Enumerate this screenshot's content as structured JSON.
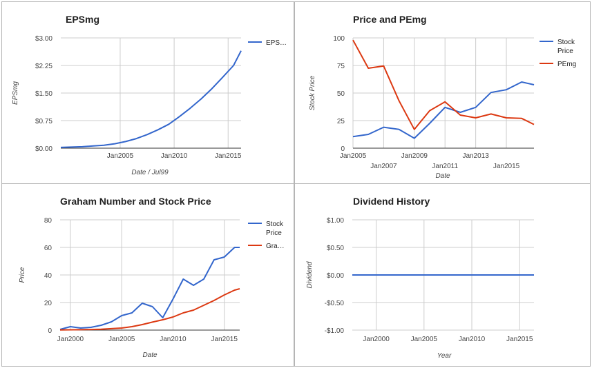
{
  "colors": {
    "blue": "#3366cc",
    "red": "#dc3912",
    "grid": "#cccccc",
    "axis": "#333333"
  },
  "chart_data": [
    {
      "type": "line",
      "title": "EPSmg",
      "xlabel": "Date / Jul99",
      "ylabel": "EPSmg",
      "xlim": [
        1999.5,
        2016.2
      ],
      "ylim": [
        0,
        3
      ],
      "x_ticks": [
        {
          "v": 2005,
          "label": "Jan2005"
        },
        {
          "v": 2010,
          "label": "Jan2010"
        },
        {
          "v": 2015,
          "label": "Jan2015"
        }
      ],
      "y_ticks": [
        {
          "v": 0,
          "label": "$0.00"
        },
        {
          "v": 0.75,
          "label": "$0.75"
        },
        {
          "v": 1.5,
          "label": "$1.50"
        },
        {
          "v": 2.25,
          "label": "$2.25"
        },
        {
          "v": 3,
          "label": "$3.00"
        }
      ],
      "legend": "right",
      "series": [
        {
          "name": "EPS…",
          "color": "#3366cc",
          "x": [
            1999.5,
            2000.5,
            2001.5,
            2002.5,
            2003.5,
            2004.5,
            2005.5,
            2006.5,
            2007.5,
            2008.5,
            2009.5,
            2010.5,
            2011.5,
            2012.5,
            2013.5,
            2014.5,
            2015.5,
            2016.2
          ],
          "y": [
            0.02,
            0.03,
            0.04,
            0.06,
            0.08,
            0.12,
            0.18,
            0.26,
            0.37,
            0.5,
            0.65,
            0.86,
            1.09,
            1.34,
            1.62,
            1.93,
            2.25,
            2.65
          ]
        }
      ]
    },
    {
      "type": "line",
      "title": "Price and PEmg",
      "xlabel": "Date",
      "ylabel": "Stock Price",
      "xlim": [
        2005,
        2016.8
      ],
      "ylim": [
        0,
        100
      ],
      "x_ticks": [
        {
          "v": 2005,
          "label": "Jan2005",
          "row": 0
        },
        {
          "v": 2007,
          "label": "Jan2007",
          "row": 1
        },
        {
          "v": 2009,
          "label": "Jan2009",
          "row": 0
        },
        {
          "v": 2011,
          "label": "Jan2011",
          "row": 1
        },
        {
          "v": 2013,
          "label": "Jan2013",
          "row": 0
        },
        {
          "v": 2015,
          "label": "Jan2015",
          "row": 1
        }
      ],
      "y_ticks": [
        {
          "v": 0,
          "label": "0"
        },
        {
          "v": 25,
          "label": "25"
        },
        {
          "v": 50,
          "label": "50"
        },
        {
          "v": 75,
          "label": "75"
        },
        {
          "v": 100,
          "label": "100"
        }
      ],
      "legend": "right",
      "series": [
        {
          "name": "Stock Price",
          "color": "#3366cc",
          "x": [
            2005,
            2006,
            2007,
            2008,
            2009,
            2010,
            2011,
            2012,
            2013,
            2014,
            2015,
            2016,
            2016.8
          ],
          "y": [
            10.5,
            12.5,
            19,
            17,
            9,
            22.5,
            37,
            32.5,
            37,
            50.5,
            53,
            60,
            57.5
          ]
        },
        {
          "name": "PEmg",
          "color": "#dc3912",
          "x": [
            2005,
            2006,
            2007,
            2008,
            2009,
            2010,
            2011,
            2012,
            2013,
            2014,
            2015,
            2016,
            2016.8
          ],
          "y": [
            98,
            72.5,
            74.5,
            43,
            17,
            34,
            42,
            30,
            27.5,
            31,
            27.5,
            27,
            21.5
          ]
        }
      ]
    },
    {
      "type": "line",
      "title": "Graham Number and Stock Price",
      "xlabel": "Date",
      "ylabel": "Price",
      "xlim": [
        1999,
        2016.5
      ],
      "ylim": [
        0,
        80
      ],
      "x_ticks": [
        {
          "v": 2000,
          "label": "Jan2000"
        },
        {
          "v": 2005,
          "label": "Jan2005"
        },
        {
          "v": 2010,
          "label": "Jan2010"
        },
        {
          "v": 2015,
          "label": "Jan2015"
        }
      ],
      "y_ticks": [
        {
          "v": 0,
          "label": "0"
        },
        {
          "v": 20,
          "label": "20"
        },
        {
          "v": 40,
          "label": "40"
        },
        {
          "v": 60,
          "label": "60"
        },
        {
          "v": 80,
          "label": "80"
        }
      ],
      "legend": "right",
      "series": [
        {
          "name": "Stock Price",
          "color": "#3366cc",
          "x": [
            1999,
            2000,
            2001,
            2002,
            2003,
            2004,
            2005,
            2006,
            2007,
            2008,
            2009,
            2010,
            2011,
            2012,
            2013,
            2014,
            2015,
            2016,
            2016.5
          ],
          "y": [
            0.5,
            2.5,
            1.5,
            2,
            3.5,
            6,
            10.5,
            12.5,
            19.5,
            17,
            9,
            22.5,
            37,
            32.5,
            37,
            51,
            53,
            60,
            60
          ]
        },
        {
          "name": "Gra…",
          "color": "#dc3912",
          "x": [
            1999,
            2001,
            2003,
            2005,
            2006,
            2007,
            2008,
            2009,
            2010,
            2011,
            2012,
            2013,
            2014,
            2015,
            2016,
            2016.5
          ],
          "y": [
            0.1,
            0.3,
            0.6,
            1.5,
            2.5,
            4,
            5.8,
            7.5,
            9.5,
            12.5,
            14.5,
            18,
            21.5,
            25.5,
            29,
            30
          ]
        }
      ]
    },
    {
      "type": "line",
      "title": "Dividend History",
      "xlabel": "Year",
      "ylabel": "Dividend",
      "xlim": [
        1997.5,
        2016.5
      ],
      "ylim": [
        -1,
        1
      ],
      "x_ticks": [
        {
          "v": 2000,
          "label": "Jan2000"
        },
        {
          "v": 2005,
          "label": "Jan2005"
        },
        {
          "v": 2010,
          "label": "Jan2010"
        },
        {
          "v": 2015,
          "label": "Jan2015"
        }
      ],
      "y_ticks": [
        {
          "v": -1,
          "label": "-$1.00"
        },
        {
          "v": -0.5,
          "label": "-$0.50"
        },
        {
          "v": 0,
          "label": "$0.00"
        },
        {
          "v": 0.5,
          "label": "$0.50"
        },
        {
          "v": 1,
          "label": "$1.00"
        }
      ],
      "legend": "none",
      "series": [
        {
          "name": "",
          "color": "#3366cc",
          "x": [
            1997.5,
            2016.5
          ],
          "y": [
            0,
            0
          ]
        }
      ]
    }
  ]
}
